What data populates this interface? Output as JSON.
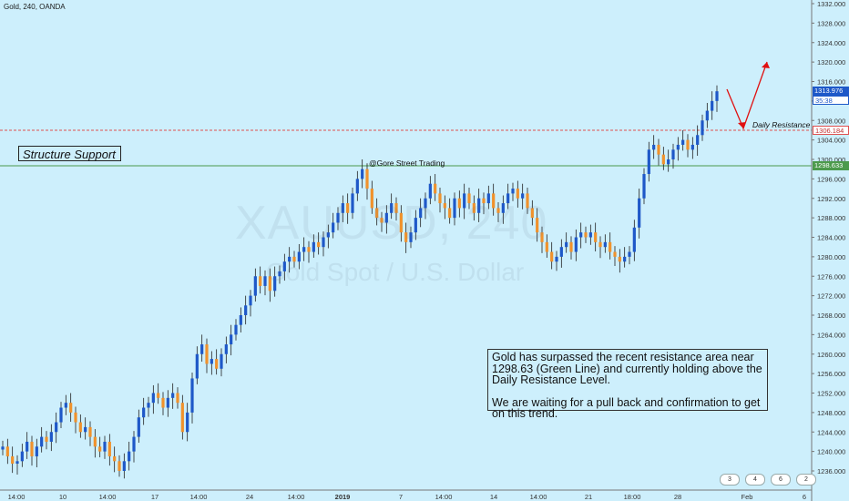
{
  "header": {
    "symbol": "Gold, 240, OANDA"
  },
  "watermark": {
    "line1": "XAUUSD, 240",
    "line2": "Gold Spot / U.S. Dollar"
  },
  "annotations": {
    "structure_support": "Structure Support",
    "credit": "@Gore Street Trading",
    "daily_resistance": "Daily Resistance",
    "note_line1": "Gold has surpassed the recent resistance area near 1298.63 (Green Line) and currently holding above the Daily Resistance Level.",
    "note_line2": "We are waiting for a pull back and confirmation to get on this trend."
  },
  "price_tags": {
    "last": "1313.976",
    "countdown": "35:38",
    "resistance": "1306.184",
    "support": "1298.633"
  },
  "events": [
    "3",
    "4",
    "6",
    "2"
  ],
  "colors": {
    "up": "#1e58c8",
    "down": "#f0922c",
    "resistance_line": "#e05050",
    "support_line": "#4c9a4c",
    "arrow": "#e01010"
  },
  "chart_data": {
    "type": "candlestick",
    "title": "Gold, 240, OANDA",
    "ylim": [
      1234,
      1334
    ],
    "yticks": [
      1236,
      1240,
      1244,
      1248,
      1252,
      1256,
      1260,
      1264,
      1268,
      1272,
      1276,
      1280,
      1284,
      1288,
      1292,
      1296,
      1300,
      1304,
      1308,
      1312,
      1316,
      1320,
      1324,
      1328,
      1332
    ],
    "xtick_labels": [
      "14:00",
      "10",
      "14:00",
      "17",
      "14:00",
      "24",
      "14:00",
      "2019",
      "7",
      "14:00",
      "14",
      "14:00",
      "21",
      "18:00",
      "28",
      "Feb",
      "6"
    ],
    "levels": {
      "resistance": 1306.184,
      "support": 1298.633
    },
    "projection": [
      1306,
      1320
    ],
    "closes": [
      1241,
      1239,
      1237.5,
      1238,
      1240,
      1242,
      1239,
      1241,
      1243,
      1242,
      1244,
      1246,
      1249,
      1250,
      1248,
      1246,
      1244,
      1245,
      1243,
      1241,
      1240,
      1242,
      1239,
      1238,
      1236,
      1238,
      1240,
      1243,
      1247,
      1249,
      1250,
      1252,
      1251,
      1249,
      1251,
      1252,
      1250,
      1244,
      1248,
      1255,
      1260,
      1262,
      1258,
      1259,
      1257,
      1260,
      1262,
      1264,
      1266,
      1268,
      1270,
      1272,
      1276,
      1274,
      1276,
      1273,
      1276,
      1277,
      1279,
      1280,
      1279,
      1281,
      1282,
      1281,
      1283,
      1282,
      1284,
      1285,
      1287,
      1289,
      1291,
      1289,
      1293,
      1296,
      1298,
      1294,
      1290,
      1288,
      1287,
      1289,
      1291,
      1289,
      1285,
      1283,
      1285,
      1288,
      1290,
      1292,
      1295,
      1293,
      1291,
      1290,
      1288,
      1292,
      1290,
      1293,
      1291,
      1289,
      1292,
      1291,
      1293,
      1290,
      1289,
      1291,
      1293,
      1294,
      1292,
      1293,
      1290,
      1288,
      1285,
      1283,
      1281,
      1279,
      1280,
      1282,
      1283,
      1281,
      1284,
      1285,
      1284,
      1285,
      1283,
      1282,
      1283,
      1281,
      1280,
      1279,
      1280,
      1281,
      1286,
      1292,
      1297,
      1302,
      1303,
      1301,
      1299,
      1300,
      1302,
      1303,
      1304,
      1302,
      1303,
      1305,
      1308,
      1310,
      1312,
      1314
    ]
  }
}
